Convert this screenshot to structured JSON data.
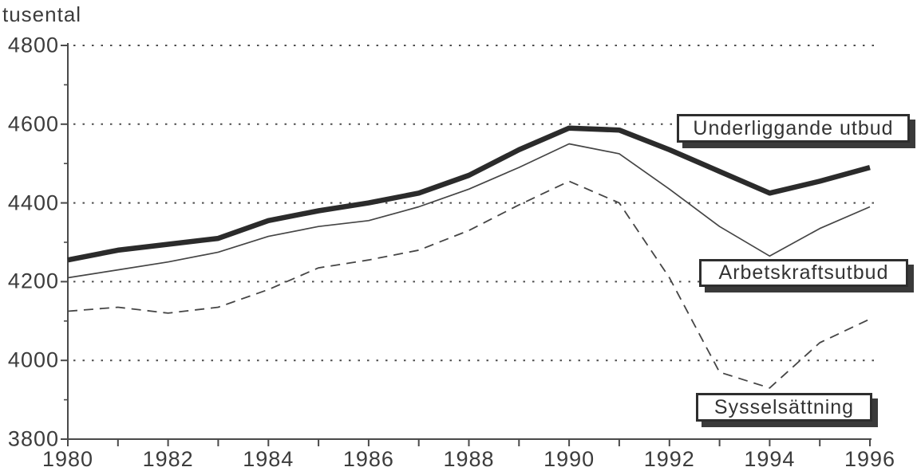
{
  "chart_data": {
    "type": "line",
    "title": "",
    "ylabel": "tusental",
    "xlabel": "",
    "ylim": [
      3800,
      4800
    ],
    "xlim": [
      1980,
      1996
    ],
    "yticks": [
      3800,
      4000,
      4200,
      4400,
      4600,
      4800
    ],
    "yticks_minor": [
      3900,
      4100,
      4300,
      4500,
      4700
    ],
    "xtick_labels": [
      1980,
      1982,
      1984,
      1986,
      1988,
      1990,
      1992,
      1994,
      1996
    ],
    "grid": "horizontal dotted lines at 4000, 4200, 4400, 4600, 4800; no grid at 3800 (axis)",
    "legend_position": "inline callout boxes at right side of plot",
    "x": [
      1980,
      1981,
      1982,
      1983,
      1984,
      1985,
      1986,
      1987,
      1988,
      1989,
      1990,
      1991,
      1992,
      1993,
      1994,
      1995,
      1996
    ],
    "series": [
      {
        "id": "underliggande-utbud",
        "name": "Underliggande utbud",
        "style": "thick-solid",
        "values": [
          4255,
          4280,
          4295,
          4310,
          4355,
          4380,
          4400,
          4425,
          4470,
          4535,
          4590,
          4585,
          4535,
          4480,
          4425,
          4455,
          4490
        ]
      },
      {
        "id": "arbetskraftsutbud",
        "name": "Arbetskraftsutbud",
        "style": "thin-solid",
        "values": [
          4210,
          4230,
          4250,
          4275,
          4315,
          4340,
          4355,
          4390,
          4435,
          4490,
          4550,
          4525,
          4435,
          4340,
          4265,
          4335,
          4390
        ]
      },
      {
        "id": "sysselsattning",
        "name": "Sysselsättning",
        "style": "dashed",
        "values": [
          4125,
          4135,
          4120,
          4135,
          4180,
          4235,
          4255,
          4280,
          4330,
          4395,
          4455,
          4400,
          4210,
          3970,
          3930,
          4045,
          4105
        ]
      }
    ],
    "colors": {
      "ink": "#2b2b2b",
      "background": "#ffffff"
    }
  }
}
